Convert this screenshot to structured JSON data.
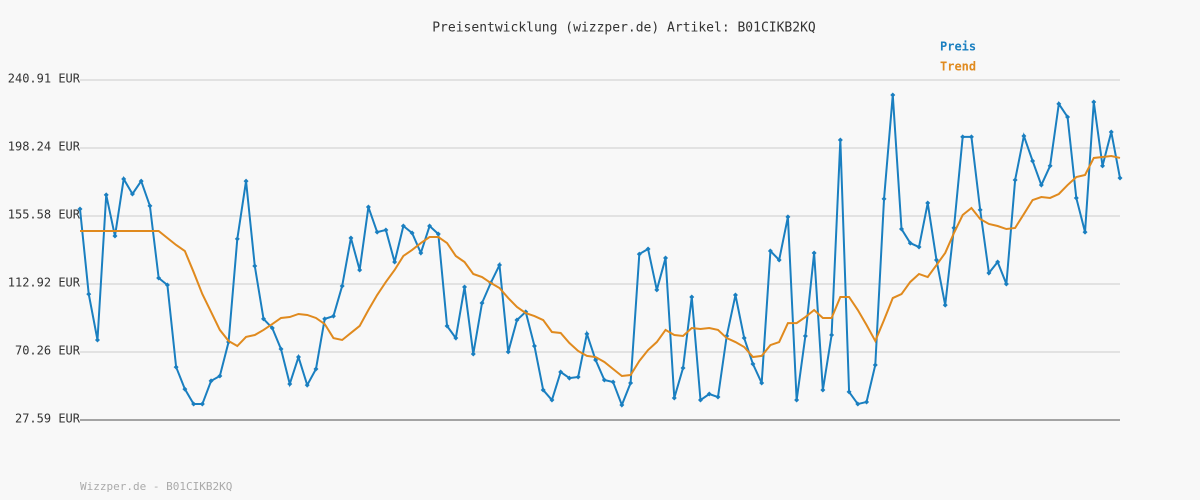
{
  "chart_data": {
    "type": "line",
    "title": "Preisentwicklung (wizzper.de) Artikel: B01CIKB2KQ",
    "footer": "Wizzper.de - B01CIKB2KQ",
    "ylim": [
      27.59,
      240.91
    ],
    "yticks": [
      {
        "value": 27.59,
        "label": "27.59 EUR"
      },
      {
        "value": 70.26,
        "label": "70.26 EUR"
      },
      {
        "value": 112.92,
        "label": "112.92 EUR"
      },
      {
        "value": 155.58,
        "label": "155.58 EUR"
      },
      {
        "value": 198.24,
        "label": "198.24 EUR"
      },
      {
        "value": 240.91,
        "label": "240.91 EUR"
      }
    ],
    "grid": true,
    "legend": "top-right",
    "series": [
      {
        "name": "Preis",
        "color": "#1a7fc0",
        "markers": true,
        "values": [
          160.0,
          106.6,
          77.8,
          168.8,
          143.0,
          178.8,
          169.4,
          177.5,
          161.9,
          116.7,
          112.3,
          60.8,
          47.0,
          37.6,
          37.6,
          52.1,
          55.2,
          76.5,
          141.2,
          177.5,
          124.2,
          91.0,
          85.3,
          72.1,
          50.2,
          67.1,
          49.5,
          59.6,
          91.0,
          92.8,
          111.7,
          141.8,
          121.7,
          161.2,
          145.5,
          146.8,
          126.7,
          149.3,
          144.9,
          132.4,
          149.3,
          144.3,
          86.6,
          79.0,
          111.0,
          69.0,
          101.0,
          113.6,
          124.8,
          70.3,
          90.3,
          95.4,
          74.0,
          46.4,
          40.1,
          57.7,
          53.9,
          54.6,
          81.6,
          65.2,
          52.7,
          51.4,
          37.0,
          50.8,
          131.7,
          134.9,
          109.2,
          129.2,
          41.4,
          60.2,
          104.8,
          40.1,
          43.9,
          42.0,
          80.3,
          106.0,
          79.0,
          62.7,
          50.8,
          133.6,
          128.0,
          155.0,
          40.1,
          80.3,
          132.4,
          46.4,
          80.9,
          203.3,
          45.2,
          37.6,
          38.9,
          62.1,
          166.3,
          231.5,
          147.4,
          138.6,
          136.1,
          163.7,
          128.0,
          99.7,
          148.1,
          205.2,
          205.2,
          159.4,
          119.8,
          126.7,
          112.9,
          178.2,
          205.8,
          190.1,
          175.0,
          187.0,
          225.9,
          217.7,
          166.9,
          145.5,
          227.1,
          187.0,
          208.3,
          179.4
        ]
      },
      {
        "name": "Trend",
        "color": "#e08a1e",
        "markers": false,
        "values": [
          146.2,
          146.2,
          146.2,
          146.2,
          146.2,
          146.2,
          146.2,
          146.2,
          146.2,
          146.2,
          141.8,
          137.4,
          133.6,
          120.4,
          106.6,
          95.4,
          84.1,
          77.2,
          74.0,
          79.7,
          80.9,
          84.1,
          87.8,
          91.6,
          92.2,
          94.1,
          93.5,
          91.6,
          87.8,
          79.0,
          77.8,
          82.2,
          86.6,
          96.6,
          106.0,
          114.2,
          121.7,
          130.5,
          134.3,
          138.6,
          142.4,
          142.4,
          138.6,
          130.5,
          126.7,
          119.2,
          117.3,
          113.6,
          110.4,
          104.1,
          98.5,
          94.7,
          92.8,
          90.3,
          82.8,
          82.2,
          75.9,
          70.9,
          67.8,
          67.1,
          64.0,
          59.6,
          55.2,
          55.8,
          64.6,
          71.5,
          76.5,
          84.1,
          80.9,
          80.3,
          85.3,
          84.7,
          85.3,
          84.1,
          79.0,
          76.5,
          73.4,
          67.1,
          67.8,
          74.6,
          76.5,
          88.4,
          88.4,
          92.2,
          96.6,
          91.6,
          91.6,
          104.8,
          104.8,
          96.6,
          87.2,
          77.2,
          90.3,
          104.1,
          106.6,
          114.2,
          119.2,
          117.3,
          124.8,
          132.4,
          144.9,
          156.2,
          160.6,
          153.7,
          150.6,
          149.3,
          147.4,
          148.1,
          156.8,
          165.6,
          167.5,
          166.9,
          169.4,
          175.0,
          180.0,
          181.3,
          192.0,
          192.6,
          193.2,
          192.0
        ]
      }
    ]
  }
}
